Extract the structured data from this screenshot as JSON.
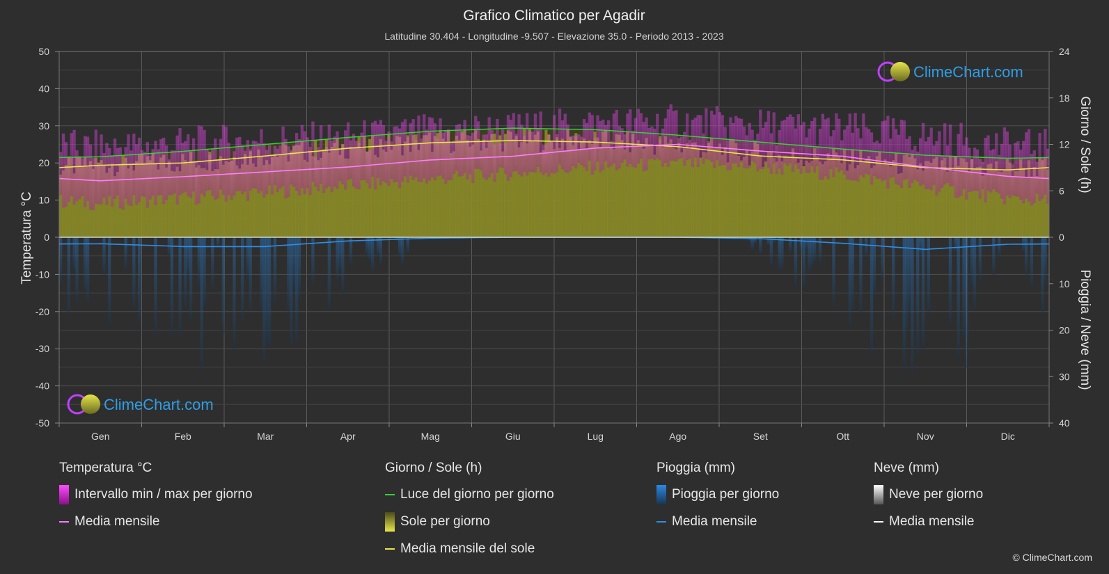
{
  "title": "Grafico Climatico per Agadir",
  "subtitle": "Latitudine 30.404 - Longitudine -9.507 - Elevazione 35.0 - Periodo 2013 - 2023",
  "watermark": "ClimeChart.com",
  "copyright": "© ClimeChart.com",
  "colors": {
    "background": "#2e2e2e",
    "temp_range": "#d81fd8",
    "temp_mean": "#ff7cff",
    "daylight": "#35d135",
    "sunshine_fill": "#9a9a2a",
    "sunshine_mean": "#e6e64a",
    "rain_bar": "#1f5a8a",
    "rain_mean": "#2e8ee6",
    "snow_mean": "#ffffff",
    "logo_text": "#2e9ee6"
  },
  "chart_data": {
    "type": "line",
    "x_categories": [
      "Gen",
      "Feb",
      "Mar",
      "Apr",
      "Mag",
      "Giu",
      "Lug",
      "Ago",
      "Set",
      "Ott",
      "Nov",
      "Dic"
    ],
    "left_axis": {
      "label": "Temperatura °C",
      "min": -50,
      "max": 50,
      "ticks": [
        50,
        40,
        30,
        20,
        10,
        0,
        -10,
        -20,
        -30,
        -40,
        -50
      ]
    },
    "right_axis_top": {
      "label": "Giorno / Sole (h)",
      "min": 0,
      "max": 24,
      "ticks": [
        24,
        18,
        12,
        6,
        0
      ]
    },
    "right_axis_bottom": {
      "label": "Pioggia / Neve (mm)",
      "min": 0,
      "max": 40,
      "ticks": [
        0,
        10,
        20,
        30,
        40
      ]
    },
    "grid": true,
    "series": [
      {
        "name": "Luce del giorno per giorno",
        "axis": "hours",
        "values": [
          10.4,
          11.1,
          12.0,
          12.9,
          13.7,
          14.1,
          13.9,
          13.2,
          12.3,
          11.4,
          10.6,
          10.2
        ]
      },
      {
        "name": "Media mensile del sole",
        "axis": "hours",
        "values": [
          9.3,
          9.6,
          10.5,
          11.5,
          12.2,
          12.5,
          12.3,
          11.7,
          10.5,
          10.0,
          9.0,
          8.7
        ]
      },
      {
        "name": "Media mensile",
        "axis": "temperature",
        "values": [
          15.2,
          16.3,
          17.6,
          18.9,
          20.8,
          21.8,
          24.0,
          25.0,
          23.2,
          21.8,
          18.9,
          16.4
        ]
      },
      {
        "name": "Intervallo min / max per giorno",
        "axis": "temperature",
        "min": [
          9.0,
          10.5,
          12.0,
          13.8,
          15.6,
          17.2,
          18.8,
          19.8,
          18.9,
          16.8,
          13.5,
          10.4
        ],
        "max": [
          22.0,
          23.0,
          24.0,
          24.5,
          26.5,
          27.0,
          28.5,
          29.0,
          27.8,
          27.0,
          25.0,
          22.5
        ]
      },
      {
        "name": "Pioggia Media mensile",
        "axis": "precip",
        "values": [
          1.4,
          2.0,
          2.0,
          0.8,
          0.2,
          0.0,
          0.0,
          0.0,
          0.3,
          1.3,
          2.6,
          1.5
        ]
      }
    ]
  },
  "legend": {
    "temperature": {
      "title": "Temperatura °C",
      "items": [
        "Intervallo min / max per giorno",
        "Media mensile"
      ]
    },
    "sun": {
      "title": "Giorno / Sole (h)",
      "items": [
        "Luce del giorno per giorno",
        "Sole per giorno",
        "Media mensile del sole"
      ]
    },
    "rain": {
      "title": "Pioggia (mm)",
      "items": [
        "Pioggia per giorno",
        "Media mensile"
      ]
    },
    "snow": {
      "title": "Neve (mm)",
      "items": [
        "Neve per giorno",
        "Media mensile"
      ]
    }
  }
}
